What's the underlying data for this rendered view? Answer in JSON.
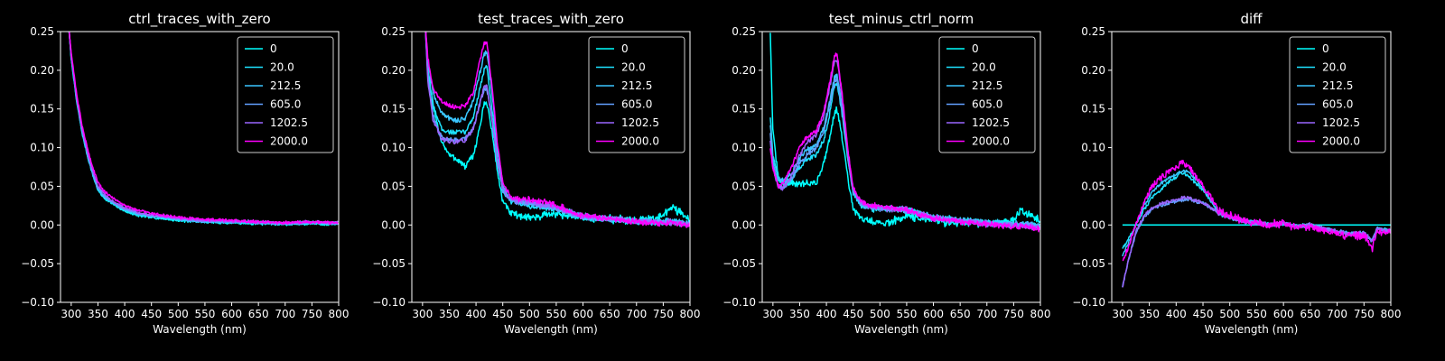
{
  "figure": {
    "background": "#000000",
    "foreground": "#ffffff"
  },
  "chart_data": [
    {
      "type": "line",
      "title": "ctrl_traces_with_zero",
      "xlabel": "Wavelength (nm)",
      "ylabel": "",
      "xlim": [
        280,
        800
      ],
      "ylim": [
        -0.1,
        0.25
      ],
      "xticks": [
        300,
        350,
        400,
        450,
        500,
        550,
        600,
        650,
        700,
        750,
        800
      ],
      "yticks": [
        -0.1,
        -0.05,
        0.0,
        0.05,
        0.1,
        0.15,
        0.2,
        0.25
      ],
      "ytick_labels": [
        "−0.10",
        "−0.05",
        "0.00",
        "0.05",
        "0.10",
        "0.15",
        "0.20",
        "0.25"
      ],
      "legend_position": "top-right",
      "x": [
        295,
        300,
        310,
        320,
        330,
        340,
        350,
        360,
        375,
        400,
        425,
        450,
        475,
        500,
        525,
        550,
        600,
        650,
        700,
        750,
        800
      ],
      "series": [
        {
          "name": "0",
          "color": "#00ffff",
          "noise": 0.0015,
          "values": [
            0.26,
            0.215,
            0.16,
            0.12,
            0.09,
            0.065,
            0.045,
            0.036,
            0.028,
            0.018,
            0.012,
            0.01,
            0.008,
            0.006,
            0.005,
            0.004,
            0.003,
            0.002,
            0.001,
            0.002,
            0.001
          ]
        },
        {
          "name": "20.0",
          "color": "#1de2ff",
          "noise": 0.0015,
          "values": [
            0.26,
            0.216,
            0.162,
            0.121,
            0.091,
            0.066,
            0.046,
            0.037,
            0.029,
            0.019,
            0.013,
            0.011,
            0.009,
            0.007,
            0.006,
            0.005,
            0.004,
            0.003,
            0.002,
            0.003,
            0.002
          ]
        },
        {
          "name": "212.5",
          "color": "#3ac5ff",
          "noise": 0.0015,
          "values": [
            0.26,
            0.217,
            0.163,
            0.122,
            0.092,
            0.067,
            0.047,
            0.038,
            0.03,
            0.02,
            0.014,
            0.012,
            0.01,
            0.008,
            0.006,
            0.005,
            0.004,
            0.003,
            0.002,
            0.003,
            0.002
          ]
        },
        {
          "name": "605.0",
          "color": "#62a0ff",
          "noise": 0.0015,
          "values": [
            0.26,
            0.218,
            0.164,
            0.123,
            0.093,
            0.068,
            0.048,
            0.039,
            0.03,
            0.021,
            0.015,
            0.012,
            0.01,
            0.008,
            0.006,
            0.005,
            0.004,
            0.003,
            0.002,
            0.003,
            0.002
          ]
        },
        {
          "name": "1202.5",
          "color": "#9a66ff",
          "noise": 0.0015,
          "values": [
            0.26,
            0.22,
            0.166,
            0.125,
            0.095,
            0.07,
            0.05,
            0.041,
            0.032,
            0.022,
            0.016,
            0.013,
            0.011,
            0.009,
            0.007,
            0.006,
            0.005,
            0.004,
            0.003,
            0.004,
            0.003
          ]
        },
        {
          "name": "2000.0",
          "color": "#ff00ff",
          "noise": 0.0015,
          "values": [
            0.26,
            0.223,
            0.17,
            0.13,
            0.1,
            0.075,
            0.055,
            0.045,
            0.036,
            0.025,
            0.019,
            0.015,
            0.012,
            0.01,
            0.008,
            0.007,
            0.006,
            0.004,
            0.003,
            0.004,
            0.003
          ]
        }
      ]
    },
    {
      "type": "line",
      "title": "test_traces_with_zero",
      "xlabel": "Wavelength (nm)",
      "ylabel": "",
      "xlim": [
        280,
        800
      ],
      "ylim": [
        -0.1,
        0.25
      ],
      "xticks": [
        300,
        350,
        400,
        450,
        500,
        550,
        600,
        650,
        700,
        750,
        800
      ],
      "yticks": [
        -0.1,
        -0.05,
        0.0,
        0.05,
        0.1,
        0.15,
        0.2,
        0.25
      ],
      "ytick_labels": [
        "−0.10",
        "−0.05",
        "0.00",
        "0.05",
        "0.10",
        "0.15",
        "0.20",
        "0.25"
      ],
      "legend_position": "top-right",
      "x": [
        305,
        310,
        320,
        335,
        350,
        365,
        380,
        395,
        405,
        415,
        420,
        430,
        440,
        450,
        465,
        480,
        500,
        525,
        550,
        575,
        600,
        650,
        700,
        750,
        765,
        800
      ],
      "series": [
        {
          "name": "0",
          "color": "#00ffff",
          "noise": 0.004,
          "values": [
            0.26,
            0.2,
            0.15,
            0.11,
            0.09,
            0.085,
            0.075,
            0.09,
            0.12,
            0.155,
            0.16,
            0.12,
            0.07,
            0.03,
            0.015,
            0.012,
            0.01,
            0.012,
            0.015,
            0.012,
            0.01,
            0.008,
            0.006,
            0.01,
            0.025,
            0.005
          ]
        },
        {
          "name": "20.0",
          "color": "#1de2ff",
          "noise": 0.003,
          "values": [
            0.26,
            0.2,
            0.155,
            0.125,
            0.12,
            0.12,
            0.12,
            0.14,
            0.17,
            0.2,
            0.205,
            0.15,
            0.09,
            0.045,
            0.03,
            0.028,
            0.025,
            0.022,
            0.02,
            0.015,
            0.01,
            0.008,
            0.005,
            0.004,
            0.005,
            0.002
          ]
        },
        {
          "name": "212.5",
          "color": "#3ac5ff",
          "noise": 0.003,
          "values": [
            0.26,
            0.21,
            0.17,
            0.145,
            0.138,
            0.135,
            0.138,
            0.16,
            0.19,
            0.22,
            0.225,
            0.17,
            0.1,
            0.05,
            0.033,
            0.03,
            0.028,
            0.025,
            0.022,
            0.016,
            0.011,
            0.008,
            0.005,
            0.004,
            0.005,
            0.002
          ]
        },
        {
          "name": "605.0",
          "color": "#62a0ff",
          "noise": 0.003,
          "values": [
            0.26,
            0.19,
            0.14,
            0.115,
            0.11,
            0.11,
            0.112,
            0.125,
            0.15,
            0.175,
            0.178,
            0.135,
            0.08,
            0.045,
            0.032,
            0.03,
            0.028,
            0.025,
            0.022,
            0.016,
            0.011,
            0.008,
            0.005,
            0.003,
            0.004,
            0.001
          ]
        },
        {
          "name": "1202.5",
          "color": "#9a66ff",
          "noise": 0.003,
          "values": [
            0.26,
            0.185,
            0.135,
            0.112,
            0.108,
            0.108,
            0.11,
            0.125,
            0.152,
            0.178,
            0.18,
            0.138,
            0.082,
            0.046,
            0.033,
            0.031,
            0.029,
            0.026,
            0.023,
            0.016,
            0.011,
            0.008,
            0.005,
            0.003,
            0.004,
            0.001
          ]
        },
        {
          "name": "2000.0",
          "color": "#ff00ff",
          "noise": 0.003,
          "values": [
            0.26,
            0.215,
            0.175,
            0.16,
            0.155,
            0.152,
            0.155,
            0.17,
            0.205,
            0.235,
            0.238,
            0.18,
            0.105,
            0.055,
            0.036,
            0.034,
            0.032,
            0.03,
            0.026,
            0.018,
            0.012,
            0.008,
            0.004,
            0.002,
            0.002,
            0.0
          ]
        }
      ]
    },
    {
      "type": "line",
      "title": "test_minus_ctrl_norm",
      "xlabel": "Wavelength (nm)",
      "ylabel": "",
      "xlim": [
        280,
        800
      ],
      "ylim": [
        -0.1,
        0.25
      ],
      "xticks": [
        300,
        350,
        400,
        450,
        500,
        550,
        600,
        650,
        700,
        750,
        800
      ],
      "yticks": [
        -0.1,
        -0.05,
        0.0,
        0.05,
        0.1,
        0.15,
        0.2,
        0.25
      ],
      "ytick_labels": [
        "−0.10",
        "−0.05",
        "0.00",
        "0.05",
        "0.10",
        "0.15",
        "0.20",
        "0.25"
      ],
      "legend_position": "top-right",
      "x": [
        295,
        300,
        310,
        320,
        335,
        350,
        365,
        380,
        395,
        405,
        415,
        420,
        430,
        440,
        450,
        465,
        480,
        500,
        525,
        550,
        575,
        600,
        650,
        700,
        750,
        765,
        800
      ],
      "series": [
        {
          "name": "0",
          "color": "#00ffff",
          "noise": 0.004,
          "values": [
            0.25,
            0.12,
            0.06,
            0.052,
            0.055,
            0.052,
            0.055,
            0.053,
            0.08,
            0.11,
            0.145,
            0.15,
            0.11,
            0.06,
            0.02,
            0.008,
            0.005,
            0.003,
            0.005,
            0.012,
            0.008,
            0.005,
            0.003,
            0.002,
            0.005,
            0.02,
            0.005
          ]
        },
        {
          "name": "20.0",
          "color": "#1de2ff",
          "noise": 0.003,
          "values": [
            0.14,
            0.09,
            0.06,
            0.055,
            0.06,
            0.075,
            0.085,
            0.09,
            0.11,
            0.14,
            0.18,
            0.185,
            0.14,
            0.085,
            0.04,
            0.025,
            0.022,
            0.02,
            0.02,
            0.02,
            0.015,
            0.01,
            0.006,
            0.003,
            0.001,
            0.002,
            -0.002
          ]
        },
        {
          "name": "212.5",
          "color": "#3ac5ff",
          "noise": 0.003,
          "values": [
            0.13,
            0.085,
            0.058,
            0.058,
            0.068,
            0.085,
            0.098,
            0.102,
            0.125,
            0.155,
            0.19,
            0.195,
            0.15,
            0.09,
            0.045,
            0.028,
            0.024,
            0.022,
            0.021,
            0.02,
            0.015,
            0.01,
            0.006,
            0.003,
            0.001,
            0.002,
            -0.002
          ]
        },
        {
          "name": "605.0",
          "color": "#62a0ff",
          "noise": 0.003,
          "values": [
            0.12,
            0.08,
            0.05,
            0.048,
            0.06,
            0.08,
            0.092,
            0.098,
            0.12,
            0.15,
            0.185,
            0.19,
            0.145,
            0.088,
            0.043,
            0.027,
            0.023,
            0.021,
            0.02,
            0.019,
            0.014,
            0.009,
            0.005,
            0.002,
            0.0,
            0.001,
            -0.003
          ]
        },
        {
          "name": "1202.5",
          "color": "#9a66ff",
          "noise": 0.003,
          "values": [
            0.11,
            0.075,
            0.048,
            0.048,
            0.065,
            0.09,
            0.108,
            0.115,
            0.14,
            0.175,
            0.21,
            0.215,
            0.16,
            0.095,
            0.046,
            0.029,
            0.025,
            0.022,
            0.021,
            0.02,
            0.014,
            0.009,
            0.005,
            0.002,
            -0.001,
            0.0,
            -0.004
          ]
        },
        {
          "name": "2000.0",
          "color": "#ff00ff",
          "noise": 0.003,
          "values": [
            0.1,
            0.072,
            0.05,
            0.055,
            0.075,
            0.1,
            0.115,
            0.12,
            0.145,
            0.18,
            0.218,
            0.222,
            0.165,
            0.098,
            0.048,
            0.03,
            0.026,
            0.024,
            0.022,
            0.02,
            0.014,
            0.009,
            0.004,
            0.001,
            -0.002,
            -0.001,
            -0.006
          ]
        }
      ]
    },
    {
      "type": "line",
      "title": "diff",
      "xlabel": "Wavelength (nm)",
      "ylabel": "",
      "xlim": [
        280,
        800
      ],
      "ylim": [
        -0.1,
        0.25
      ],
      "xticks": [
        300,
        350,
        400,
        450,
        500,
        550,
        600,
        650,
        700,
        750,
        800
      ],
      "yticks": [
        -0.1,
        -0.05,
        0.0,
        0.05,
        0.1,
        0.15,
        0.2,
        0.25
      ],
      "ytick_labels": [
        "−0.10",
        "−0.05",
        "0.00",
        "0.05",
        "0.10",
        "0.15",
        "0.20",
        "0.25"
      ],
      "legend_position": "top-right",
      "x": [
        300,
        310,
        325,
        340,
        355,
        370,
        385,
        400,
        410,
        420,
        435,
        450,
        465,
        480,
        500,
        525,
        550,
        575,
        600,
        625,
        650,
        675,
        700,
        725,
        750,
        765,
        775,
        800
      ],
      "series": [
        {
          "name": "0",
          "color": "#00ffff",
          "noise": 0,
          "values": [
            0.0,
            0.0,
            0.0,
            0.0,
            0.0,
            0.0,
            0.0,
            0.0,
            0.0,
            0.0,
            0.0,
            0.0,
            0.0,
            0.0,
            0.0,
            0.0,
            0.0,
            0.0,
            0.0,
            0.0,
            0.0,
            0.0,
            0.0,
            0.0,
            0.0,
            0.0,
            0.0,
            0.0
          ]
        },
        {
          "name": "20.0",
          "color": "#1de2ff",
          "noise": 0.002,
          "values": [
            -0.03,
            -0.02,
            0.0,
            0.02,
            0.035,
            0.045,
            0.055,
            0.062,
            0.068,
            0.065,
            0.055,
            0.045,
            0.03,
            0.015,
            0.01,
            0.005,
            0.003,
            0.0,
            0.002,
            -0.002,
            0.0,
            -0.005,
            -0.008,
            -0.012,
            -0.01,
            -0.02,
            -0.005,
            -0.008
          ]
        },
        {
          "name": "212.5",
          "color": "#3ac5ff",
          "noise": 0.002,
          "values": [
            -0.04,
            -0.025,
            0.0,
            0.025,
            0.042,
            0.053,
            0.06,
            0.066,
            0.07,
            0.07,
            0.06,
            0.048,
            0.032,
            0.016,
            0.01,
            0.005,
            0.003,
            0.0,
            0.002,
            -0.002,
            0.0,
            -0.005,
            -0.008,
            -0.012,
            -0.01,
            -0.02,
            -0.005,
            -0.008
          ]
        },
        {
          "name": "605.0",
          "color": "#62a0ff",
          "noise": 0.002,
          "values": [
            -0.08,
            -0.05,
            -0.01,
            0.01,
            0.02,
            0.025,
            0.028,
            0.03,
            0.032,
            0.034,
            0.03,
            0.028,
            0.022,
            0.015,
            0.01,
            0.005,
            0.003,
            0.0,
            0.002,
            -0.002,
            0.0,
            -0.005,
            -0.008,
            -0.012,
            -0.01,
            -0.02,
            -0.005,
            -0.008
          ]
        },
        {
          "name": "1202.5",
          "color": "#9a66ff",
          "noise": 0.002,
          "values": [
            -0.08,
            -0.048,
            -0.008,
            0.012,
            0.022,
            0.027,
            0.03,
            0.033,
            0.035,
            0.036,
            0.032,
            0.029,
            0.022,
            0.015,
            0.01,
            0.005,
            0.003,
            0.0,
            0.002,
            -0.002,
            0.0,
            -0.005,
            -0.008,
            -0.012,
            -0.01,
            -0.02,
            -0.005,
            -0.008
          ]
        },
        {
          "name": "2000.0",
          "color": "#ff00ff",
          "noise": 0.004,
          "values": [
            -0.045,
            -0.03,
            0.0,
            0.03,
            0.05,
            0.06,
            0.068,
            0.075,
            0.08,
            0.078,
            0.065,
            0.05,
            0.035,
            0.018,
            0.012,
            0.006,
            0.003,
            0.0,
            0.002,
            -0.004,
            -0.002,
            -0.008,
            -0.01,
            -0.015,
            -0.012,
            -0.03,
            -0.008,
            -0.01
          ]
        }
      ]
    }
  ]
}
